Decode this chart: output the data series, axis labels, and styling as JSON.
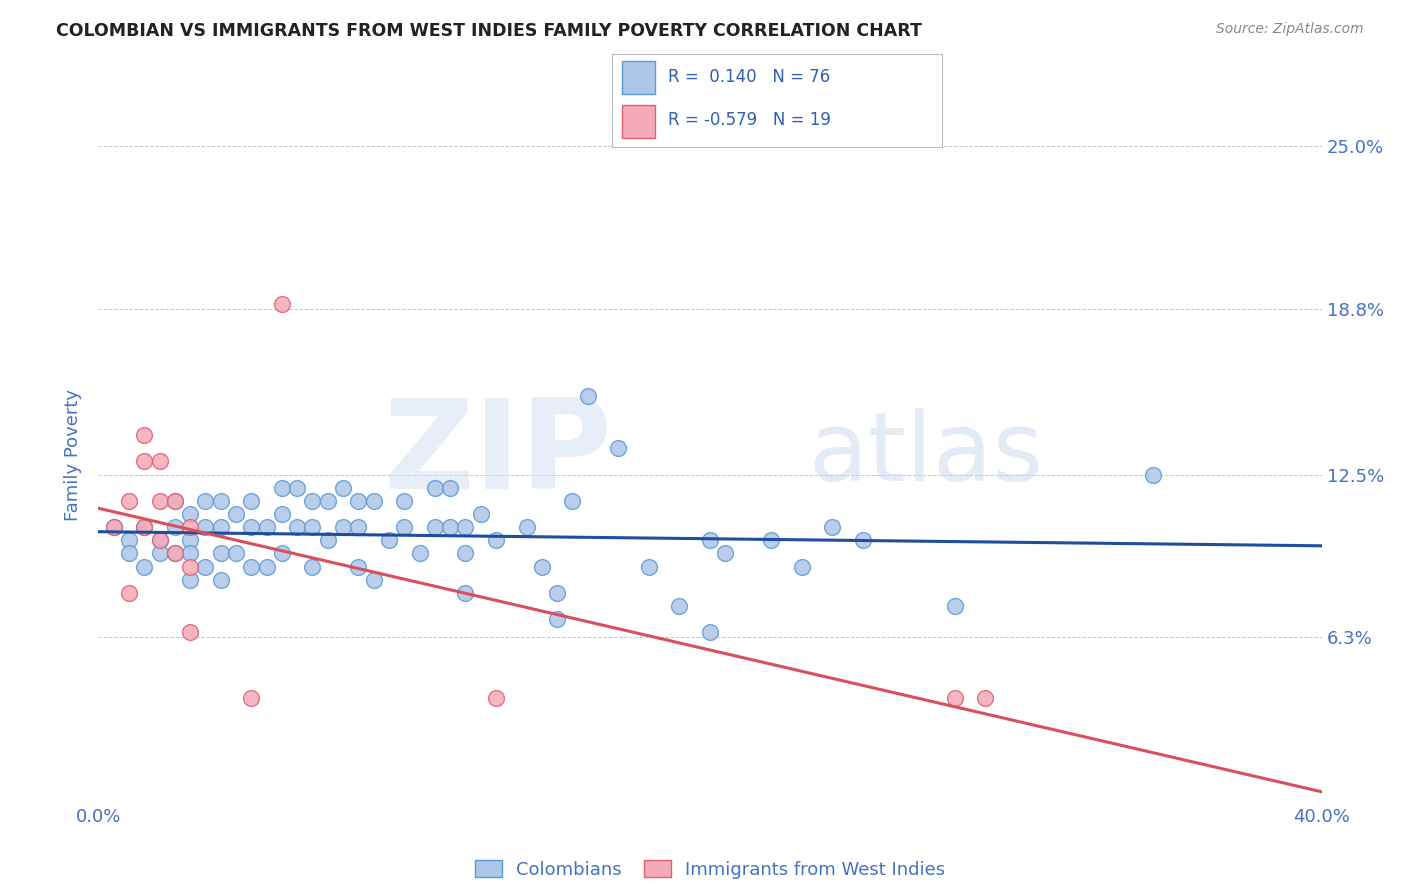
{
  "title": "COLOMBIAN VS IMMIGRANTS FROM WEST INDIES FAMILY POVERTY CORRELATION CHART",
  "source": "Source: ZipAtlas.com",
  "ylabel": "Family Poverty",
  "watermark": "ZIPatlas",
  "xlim": [
    0.0,
    0.4
  ],
  "ylim": [
    0.0,
    0.265
  ],
  "xticks": [
    0.0,
    0.05,
    0.1,
    0.15,
    0.2,
    0.25,
    0.3,
    0.35,
    0.4
  ],
  "xtick_labels": [
    "0.0%",
    "",
    "",
    "",
    "",
    "",
    "",
    "",
    "40.0%"
  ],
  "ytick_positions": [
    0.063,
    0.125,
    0.188,
    0.25
  ],
  "ytick_labels": [
    "6.3%",
    "12.5%",
    "18.8%",
    "25.0%"
  ],
  "colombians_x": [
    0.005,
    0.01,
    0.01,
    0.015,
    0.015,
    0.02,
    0.02,
    0.025,
    0.025,
    0.025,
    0.03,
    0.03,
    0.03,
    0.03,
    0.035,
    0.035,
    0.035,
    0.04,
    0.04,
    0.04,
    0.04,
    0.045,
    0.045,
    0.05,
    0.05,
    0.05,
    0.055,
    0.055,
    0.06,
    0.06,
    0.06,
    0.065,
    0.065,
    0.07,
    0.07,
    0.07,
    0.075,
    0.075,
    0.08,
    0.08,
    0.085,
    0.085,
    0.085,
    0.09,
    0.09,
    0.095,
    0.1,
    0.1,
    0.105,
    0.11,
    0.11,
    0.115,
    0.115,
    0.12,
    0.12,
    0.12,
    0.125,
    0.13,
    0.14,
    0.145,
    0.15,
    0.15,
    0.155,
    0.16,
    0.17,
    0.18,
    0.19,
    0.2,
    0.2,
    0.205,
    0.22,
    0.23,
    0.24,
    0.25,
    0.28,
    0.345
  ],
  "colombians_y": [
    0.105,
    0.1,
    0.095,
    0.105,
    0.09,
    0.1,
    0.095,
    0.115,
    0.105,
    0.095,
    0.11,
    0.1,
    0.095,
    0.085,
    0.115,
    0.105,
    0.09,
    0.115,
    0.105,
    0.095,
    0.085,
    0.11,
    0.095,
    0.115,
    0.105,
    0.09,
    0.105,
    0.09,
    0.12,
    0.11,
    0.095,
    0.12,
    0.105,
    0.115,
    0.105,
    0.09,
    0.115,
    0.1,
    0.12,
    0.105,
    0.115,
    0.105,
    0.09,
    0.115,
    0.085,
    0.1,
    0.115,
    0.105,
    0.095,
    0.12,
    0.105,
    0.12,
    0.105,
    0.105,
    0.095,
    0.08,
    0.11,
    0.1,
    0.105,
    0.09,
    0.08,
    0.07,
    0.115,
    0.155,
    0.135,
    0.09,
    0.075,
    0.1,
    0.065,
    0.095,
    0.1,
    0.09,
    0.105,
    0.1,
    0.075,
    0.125
  ],
  "west_indies_x": [
    0.005,
    0.01,
    0.01,
    0.015,
    0.015,
    0.015,
    0.02,
    0.02,
    0.02,
    0.025,
    0.025,
    0.03,
    0.03,
    0.03,
    0.05,
    0.06,
    0.13,
    0.28,
    0.29
  ],
  "west_indies_y": [
    0.105,
    0.115,
    0.08,
    0.14,
    0.13,
    0.105,
    0.13,
    0.115,
    0.1,
    0.115,
    0.095,
    0.105,
    0.09,
    0.065,
    0.04,
    0.19,
    0.04,
    0.04,
    0.04
  ],
  "col_line_color": "#1f4e9e",
  "wi_line_color": "#d94f5c",
  "col_dot_fill": "#aec6e8",
  "col_dot_edge": "#5b9bd5",
  "wi_dot_fill": "#f4aab8",
  "wi_dot_edge": "#e06070",
  "background_color": "#ffffff",
  "grid_color": "#bbbbbb",
  "title_color": "#222222",
  "source_color": "#888888",
  "tick_label_color": "#4472c4",
  "ylabel_color": "#4472c4",
  "legend_text_color": "#3060b0"
}
